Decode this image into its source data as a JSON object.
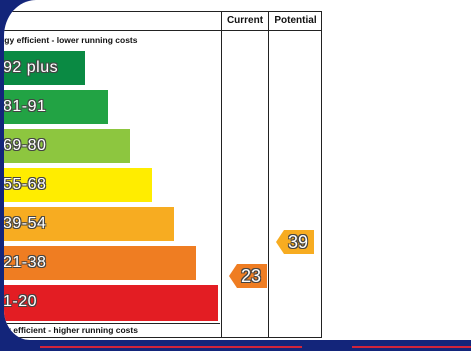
{
  "header": {
    "current": "Current",
    "potential": "Potential"
  },
  "captions": {
    "top": "rgy efficient - lower running costs",
    "bottom": "gy efficient - higher running costs"
  },
  "bands": [
    {
      "label": "92 plus",
      "color": "#0a8a43"
    },
    {
      "label": "81-91",
      "color": "#22a344"
    },
    {
      "label": "69-80",
      "color": "#8dc63f"
    },
    {
      "label": "55-68",
      "color": "#ffed00"
    },
    {
      "label": "39-54",
      "color": "#f7ac21"
    },
    {
      "label": "21-38",
      "color": "#ef7d22"
    },
    {
      "label": "1-20",
      "color": "#e31d23"
    }
  ],
  "ratings": {
    "current": {
      "value": "23",
      "color": "#ef7d22"
    },
    "potential": {
      "value": "39",
      "color": "#f7ac21"
    }
  }
}
